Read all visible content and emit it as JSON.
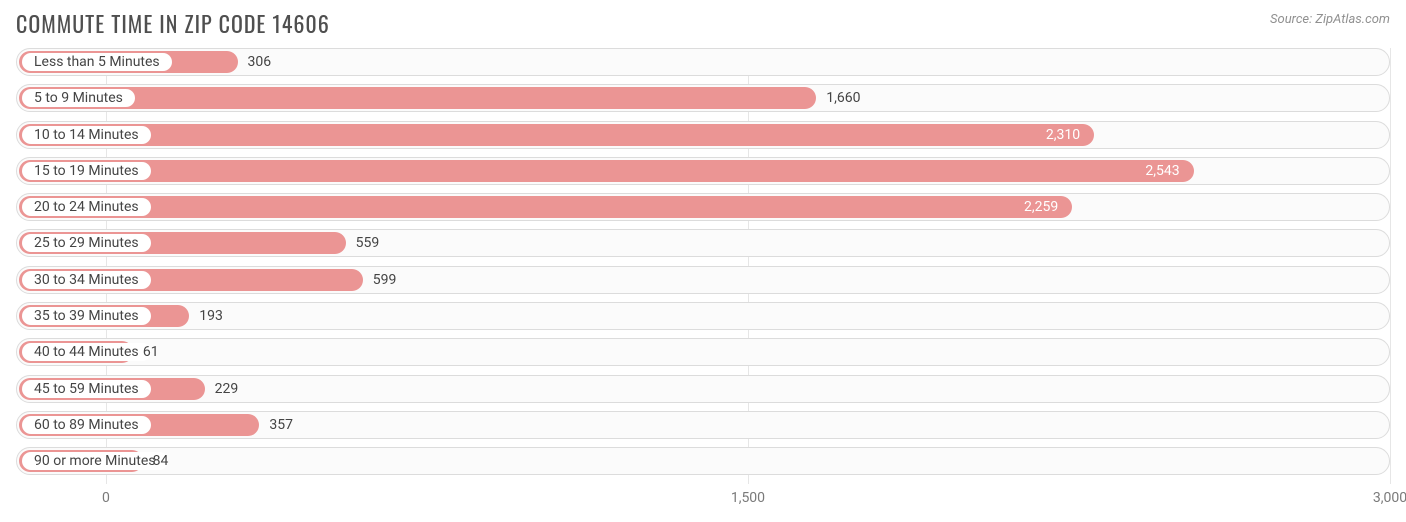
{
  "chart": {
    "type": "bar-horizontal",
    "title": "COMMUTE TIME IN ZIP CODE 14606",
    "source": "Source: ZipAtlas.com",
    "background_color": "#ffffff",
    "bar_color": "#eb9594",
    "bar_track_border": "#dcdcdc",
    "grid_color": "#e6e6e6",
    "title_color": "#4f4f4f",
    "source_color": "#909090",
    "label_color": "#444444",
    "value_color_outside": "#444444",
    "value_color_inside": "#ffffff",
    "title_fontsize": 22,
    "label_fontsize": 14,
    "label_pill_bg": "#ffffff",
    "x_min": -210,
    "x_max": 3000,
    "x_ticks": [
      {
        "value": 0,
        "label": "0"
      },
      {
        "value": 1500,
        "label": "1,500"
      },
      {
        "value": 3000,
        "label": "3,000"
      }
    ],
    "value_inside_threshold": 2000,
    "bars": [
      {
        "label": "Less than 5 Minutes",
        "value": 306,
        "value_label": "306"
      },
      {
        "label": "5 to 9 Minutes",
        "value": 1660,
        "value_label": "1,660"
      },
      {
        "label": "10 to 14 Minutes",
        "value": 2310,
        "value_label": "2,310"
      },
      {
        "label": "15 to 19 Minutes",
        "value": 2543,
        "value_label": "2,543"
      },
      {
        "label": "20 to 24 Minutes",
        "value": 2259,
        "value_label": "2,259"
      },
      {
        "label": "25 to 29 Minutes",
        "value": 559,
        "value_label": "559"
      },
      {
        "label": "30 to 34 Minutes",
        "value": 599,
        "value_label": "599"
      },
      {
        "label": "35 to 39 Minutes",
        "value": 193,
        "value_label": "193"
      },
      {
        "label": "40 to 44 Minutes",
        "value": 61,
        "value_label": "61"
      },
      {
        "label": "45 to 59 Minutes",
        "value": 229,
        "value_label": "229"
      },
      {
        "label": "60 to 89 Minutes",
        "value": 357,
        "value_label": "357"
      },
      {
        "label": "90 or more Minutes",
        "value": 84,
        "value_label": "84"
      }
    ]
  }
}
